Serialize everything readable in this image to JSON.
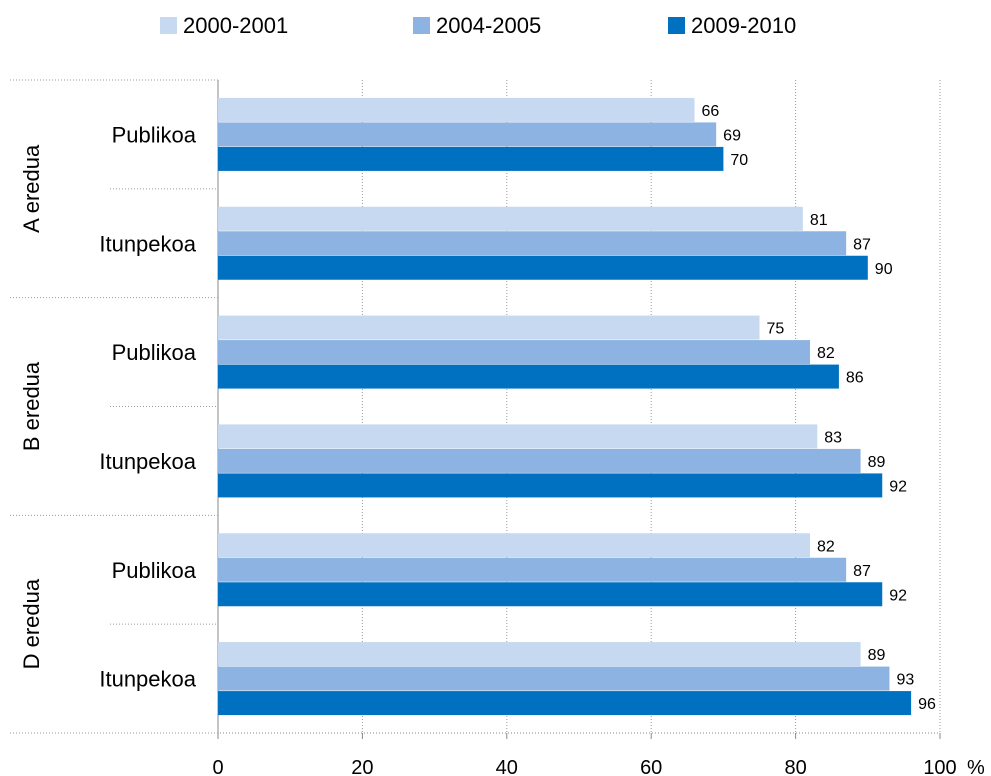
{
  "chart_data": {
    "type": "bar",
    "orientation": "horizontal",
    "xlim": [
      0,
      100
    ],
    "x_ticks": [
      "0",
      "20",
      "40",
      "60",
      "80",
      "100"
    ],
    "x_unit": "%",
    "grid": "vertical-dotted",
    "legend_position": "top",
    "groups": [
      {
        "label": "A eredua",
        "categories": [
          {
            "label": "Publikoa",
            "values": [
              66,
              69,
              70
            ]
          },
          {
            "label": "Itunpekoa",
            "values": [
              81,
              87,
              90
            ]
          }
        ]
      },
      {
        "label": "B eredua",
        "categories": [
          {
            "label": "Publikoa",
            "values": [
              75,
              82,
              86
            ]
          },
          {
            "label": "Itunpekoa",
            "values": [
              83,
              89,
              92
            ]
          }
        ]
      },
      {
        "label": "D eredua",
        "categories": [
          {
            "label": "Publikoa",
            "values": [
              82,
              87,
              92
            ]
          },
          {
            "label": "Itunpekoa",
            "values": [
              89,
              93,
              96
            ]
          }
        ]
      }
    ],
    "series": [
      {
        "name": "2000-2001",
        "color": "#c6d9f1"
      },
      {
        "name": "2004-2005",
        "color": "#8db3e2"
      },
      {
        "name": "2009-2010",
        "color": "#0070c0"
      }
    ]
  }
}
